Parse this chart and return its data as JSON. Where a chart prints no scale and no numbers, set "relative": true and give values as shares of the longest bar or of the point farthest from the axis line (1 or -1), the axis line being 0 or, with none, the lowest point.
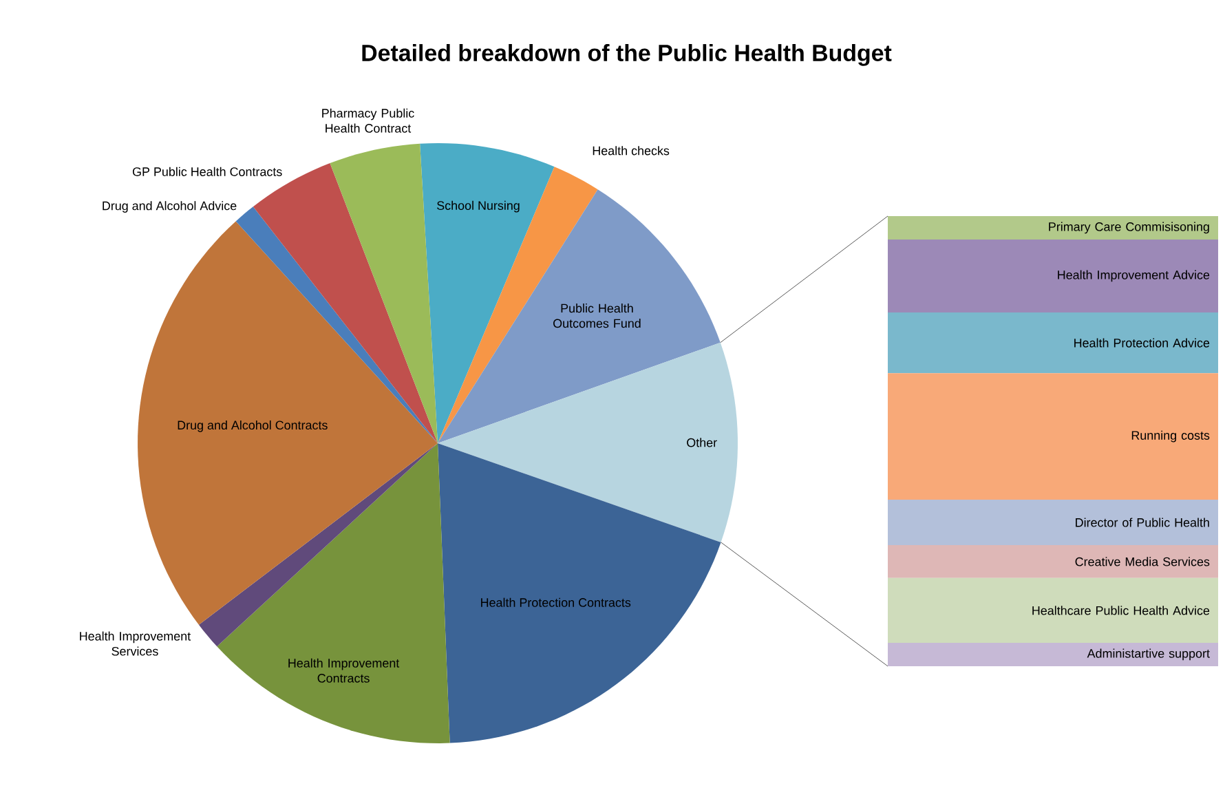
{
  "chart_data": [
    {
      "type": "pie",
      "title": "Detailed breakdown of the Public Health Budget",
      "categories": [
        "School Nursing",
        "Health checks",
        "Public Health Outcomes Fund",
        "Other",
        "Health Protection Contracts",
        "Health Improvement Contracts",
        "Health Improvement Services",
        "Drug and Alcohol Contracts",
        "Drug and Alcohol Advice",
        "GP Public Health Contracts",
        "Pharmacy Public Health Contract"
      ],
      "values": [
        7.3,
        2.6,
        10.6,
        10.8,
        19.0,
        13.8,
        1.5,
        23.6,
        1.2,
        4.7,
        4.9
      ],
      "colors": [
        "#4bacc6",
        "#f79646",
        "#7f9bc8",
        "#b7d5e0",
        "#3c6496",
        "#77933c",
        "#604a7b",
        "#c0753a",
        "#4a7ebb",
        "#c0504d",
        "#9bbb59"
      ]
    },
    {
      "type": "bar",
      "stacked": true,
      "relative": true,
      "categories": [
        null
      ],
      "series": [
        {
          "name": "Administartive support",
          "color": "#c6b9d6",
          "values": [
            0.052
          ]
        },
        {
          "name": "Healthcare Public Health Advice",
          "color": "#cfdcbb",
          "values": [
            0.144
          ]
        },
        {
          "name": "Creative Media Services",
          "color": "#deb7b6",
          "values": [
            0.073
          ]
        },
        {
          "name": "Director of Public Health",
          "color": "#b3c0da",
          "values": [
            0.101
          ]
        },
        {
          "name": "Running costs",
          "color": "#f8a978",
          "values": [
            0.281
          ]
        },
        {
          "name": "Health Protection Advice",
          "color": "#7ab8cc",
          "values": [
            0.135
          ]
        },
        {
          "name": "Health Improvement Advice",
          "color": "#9c89b7",
          "values": [
            0.162
          ]
        },
        {
          "name": "Primary Care Commisisoning",
          "color": "#b2c98a",
          "values": [
            0.052
          ]
        }
      ]
    }
  ]
}
